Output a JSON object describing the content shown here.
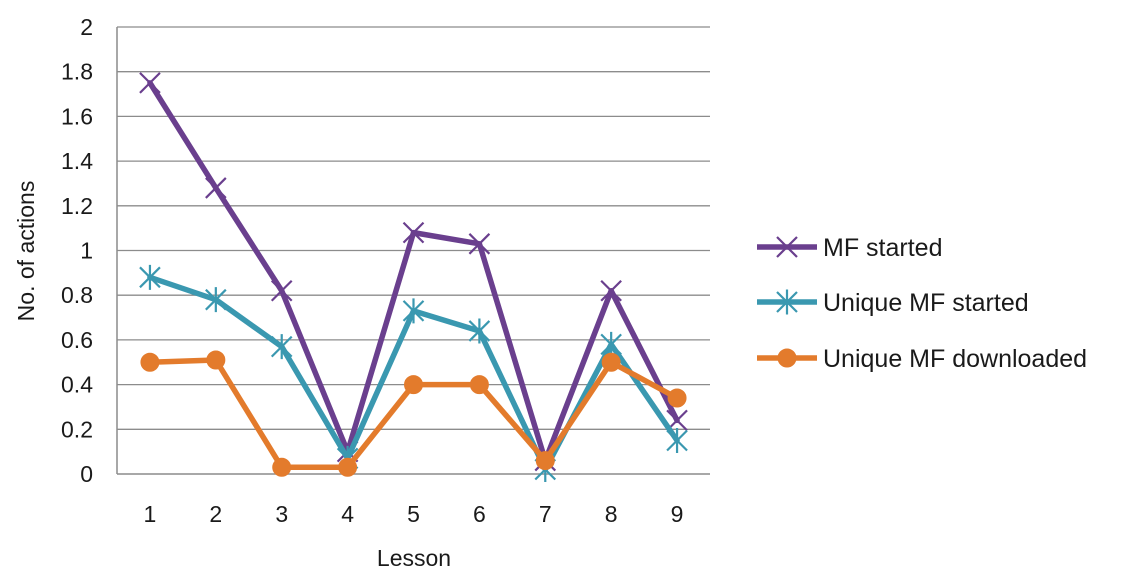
{
  "chart_data": {
    "type": "line",
    "title": "",
    "xlabel": "Lesson",
    "ylabel": "No. of actions",
    "categories": [
      "1",
      "2",
      "3",
      "4",
      "5",
      "6",
      "7",
      "8",
      "9"
    ],
    "ylim": [
      0,
      2
    ],
    "yticks": [
      "0",
      "0.2",
      "0.4",
      "0.6",
      "0.8",
      "1",
      "1.2",
      "1.4",
      "1.6",
      "1.8",
      "2"
    ],
    "grid": "horizontal",
    "legend_position": "right",
    "series": [
      {
        "name": "MF started",
        "color": "#6a3f8e",
        "marker": "x",
        "values": [
          1.75,
          1.28,
          0.82,
          0.1,
          1.08,
          1.03,
          0.06,
          0.82,
          0.24
        ]
      },
      {
        "name": "Unique MF started",
        "color": "#3a98b0",
        "marker": "star",
        "values": [
          0.88,
          0.78,
          0.57,
          0.07,
          0.73,
          0.64,
          0.02,
          0.58,
          0.15
        ]
      },
      {
        "name": "Unique MF downloaded",
        "color": "#e37b2c",
        "marker": "circle",
        "values": [
          0.5,
          0.51,
          0.03,
          0.03,
          0.4,
          0.4,
          0.06,
          0.5,
          0.34
        ]
      }
    ]
  }
}
